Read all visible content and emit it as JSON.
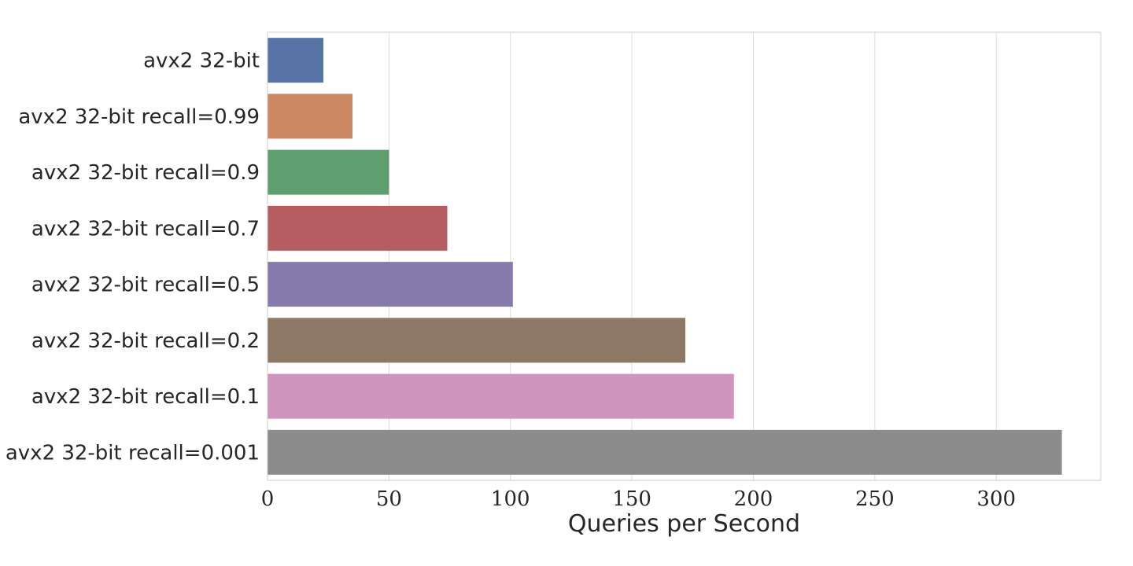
{
  "chart_data": {
    "type": "bar",
    "orientation": "horizontal",
    "title": "",
    "xlabel": "Queries per Second",
    "ylabel": "",
    "xlim": [
      0,
      343
    ],
    "xticks": [
      0,
      50,
      100,
      150,
      200,
      250,
      300
    ],
    "grid": "vertical",
    "legend": "none",
    "categories": [
      "avx2 32-bit",
      "avx2 32-bit recall=0.99",
      "avx2 32-bit recall=0.9",
      "avx2 32-bit recall=0.7",
      "avx2 32-bit recall=0.5",
      "avx2 32-bit recall=0.2",
      "avx2 32-bit recall=0.1",
      "avx2 32-bit recall=0.001"
    ],
    "values": [
      23,
      35,
      50,
      74,
      101,
      172,
      192,
      327
    ],
    "colors": [
      "#5874a6",
      "#cc8963",
      "#5f9e6e",
      "#b55d60",
      "#857aab",
      "#8d7866",
      "#d095bf",
      "#8c8c8c"
    ]
  }
}
